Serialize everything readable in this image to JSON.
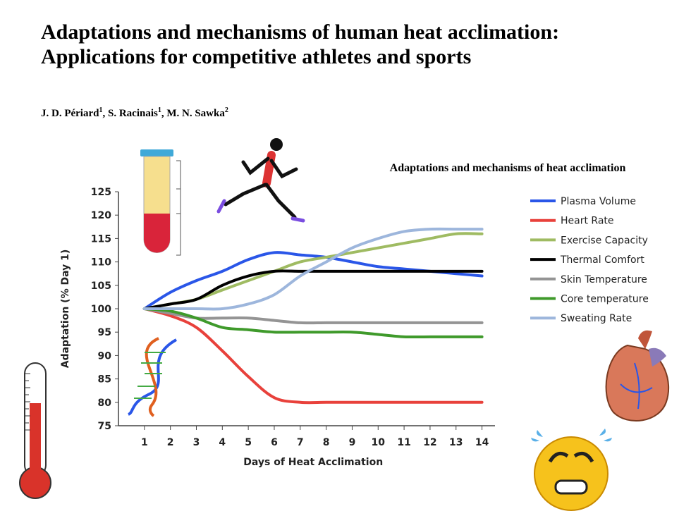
{
  "header": {
    "title_lines": [
      "Adaptations and mechanisms of human heat acclimation:",
      "Applications for competitive athletes and sports"
    ],
    "authors": [
      {
        "name": "J. D. Périard",
        "affil": "1",
        "sep": ","
      },
      {
        "name": "S. Racinais",
        "affil": "1",
        "sep": ","
      },
      {
        "name": "M. N. Sawka",
        "affil": "2"
      }
    ]
  },
  "chart_data": {
    "type": "line",
    "title": "Adaptations and mechanisms of heat acclimation",
    "x_label": "Days of Heat Acclimation",
    "y_label": "Adaptation (% Day 1)",
    "x": [
      1,
      2,
      3,
      4,
      5,
      6,
      7,
      8,
      9,
      10,
      11,
      12,
      13,
      14
    ],
    "xlim": [
      0,
      14.5
    ],
    "xticks": [
      1,
      2,
      3,
      4,
      5,
      6,
      7,
      8,
      9,
      10,
      11,
      12,
      13,
      14
    ],
    "ylim": [
      75,
      125
    ],
    "yticks": [
      75,
      80,
      85,
      90,
      95,
      100,
      105,
      110,
      115,
      120,
      125
    ],
    "grid": false,
    "legend": "right",
    "series": [
      {
        "name": "Plasma Volume",
        "color": "#2a56e8",
        "values": [
          100,
          103.5,
          106,
          108,
          110.5,
          112,
          111.5,
          111,
          110,
          109,
          108.5,
          108,
          107.5,
          107
        ]
      },
      {
        "name": "Heart Rate",
        "color": "#e8413b",
        "values": [
          100,
          98.5,
          96,
          91,
          85.5,
          81,
          80,
          80,
          80,
          80,
          80,
          80,
          80,
          80
        ]
      },
      {
        "name": "Exercise Capacity",
        "color": "#9fbb62",
        "values": [
          100,
          101,
          102,
          104,
          106,
          108,
          110,
          111,
          112,
          113,
          114,
          115,
          116,
          116
        ]
      },
      {
        "name": "Thermal Comfort",
        "color": "#000000",
        "values": [
          100,
          101,
          102,
          105,
          107,
          108,
          108,
          108,
          108,
          108,
          108,
          108,
          108,
          108
        ]
      },
      {
        "name": "Skin Temperature",
        "color": "#949494",
        "values": [
          100,
          99,
          98,
          98,
          98,
          97.5,
          97,
          97,
          97,
          97,
          97,
          97,
          97,
          97
        ]
      },
      {
        "name": "Core temperature",
        "color": "#3f9a2b",
        "values": [
          100,
          99.5,
          98,
          96,
          95.5,
          95,
          95,
          95,
          95,
          94.5,
          94,
          94,
          94,
          94
        ]
      },
      {
        "name": "Sweating Rate",
        "color": "#9db6dc",
        "values": [
          100,
          100,
          100,
          100,
          101,
          103,
          107,
          110,
          113,
          115,
          116.5,
          117,
          117,
          117
        ]
      }
    ]
  }
}
